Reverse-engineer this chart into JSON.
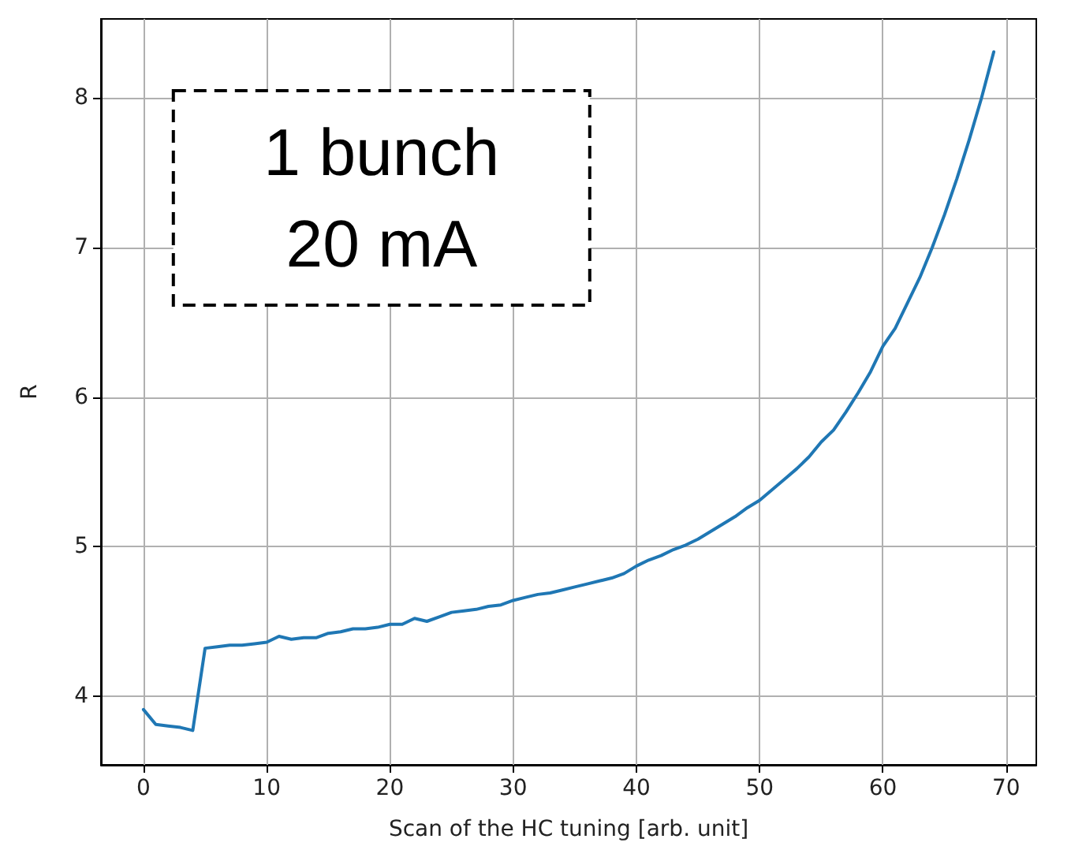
{
  "chart_data": {
    "type": "line",
    "xlabel": "Scan of the HC tuning [arb. unit]",
    "ylabel": "R",
    "annotations": [
      "1 bunch\n20 mA"
    ],
    "x": [
      0,
      1,
      2,
      3,
      4,
      5,
      6,
      7,
      8,
      9,
      10,
      11,
      12,
      13,
      14,
      15,
      16,
      17,
      18,
      19,
      20,
      21,
      22,
      23,
      24,
      25,
      26,
      27,
      28,
      29,
      30,
      31,
      32,
      33,
      34,
      35,
      36,
      37,
      38,
      39,
      40,
      41,
      42,
      43,
      44,
      45,
      46,
      47,
      48,
      49,
      50,
      51,
      52,
      53,
      54,
      55,
      56,
      57,
      58,
      59,
      60,
      61,
      62,
      63,
      64,
      65,
      66,
      67,
      68,
      69
    ],
    "series": [
      {
        "color": "#1f77b4",
        "values": [
          3.91,
          3.81,
          3.8,
          3.79,
          3.77,
          4.32,
          4.33,
          4.34,
          4.34,
          4.35,
          4.36,
          4.4,
          4.38,
          4.39,
          4.39,
          4.42,
          4.43,
          4.45,
          4.45,
          4.46,
          4.48,
          4.48,
          4.52,
          4.5,
          4.53,
          4.56,
          4.57,
          4.58,
          4.6,
          4.61,
          4.64,
          4.66,
          4.68,
          4.69,
          4.71,
          4.73,
          4.75,
          4.77,
          4.79,
          4.82,
          4.87,
          4.91,
          4.94,
          4.98,
          5.01,
          5.05,
          5.1,
          5.15,
          5.2,
          5.26,
          5.31,
          5.38,
          5.45,
          5.52,
          5.6,
          5.7,
          5.78,
          5.9,
          6.03,
          6.17,
          6.34,
          6.46,
          6.63,
          6.8,
          7.0,
          7.22,
          7.46,
          7.72,
          8.0,
          8.31
        ]
      }
    ],
    "xlim": [
      -3.45,
      72.45
    ],
    "xticks": [
      0,
      10,
      20,
      30,
      40,
      50,
      60,
      70
    ],
    "ylim": [
      3.54,
      8.53
    ],
    "yticks": [
      4,
      5,
      6,
      7,
      8
    ],
    "grid": true,
    "marker": "none",
    "line_style": "solid"
  }
}
